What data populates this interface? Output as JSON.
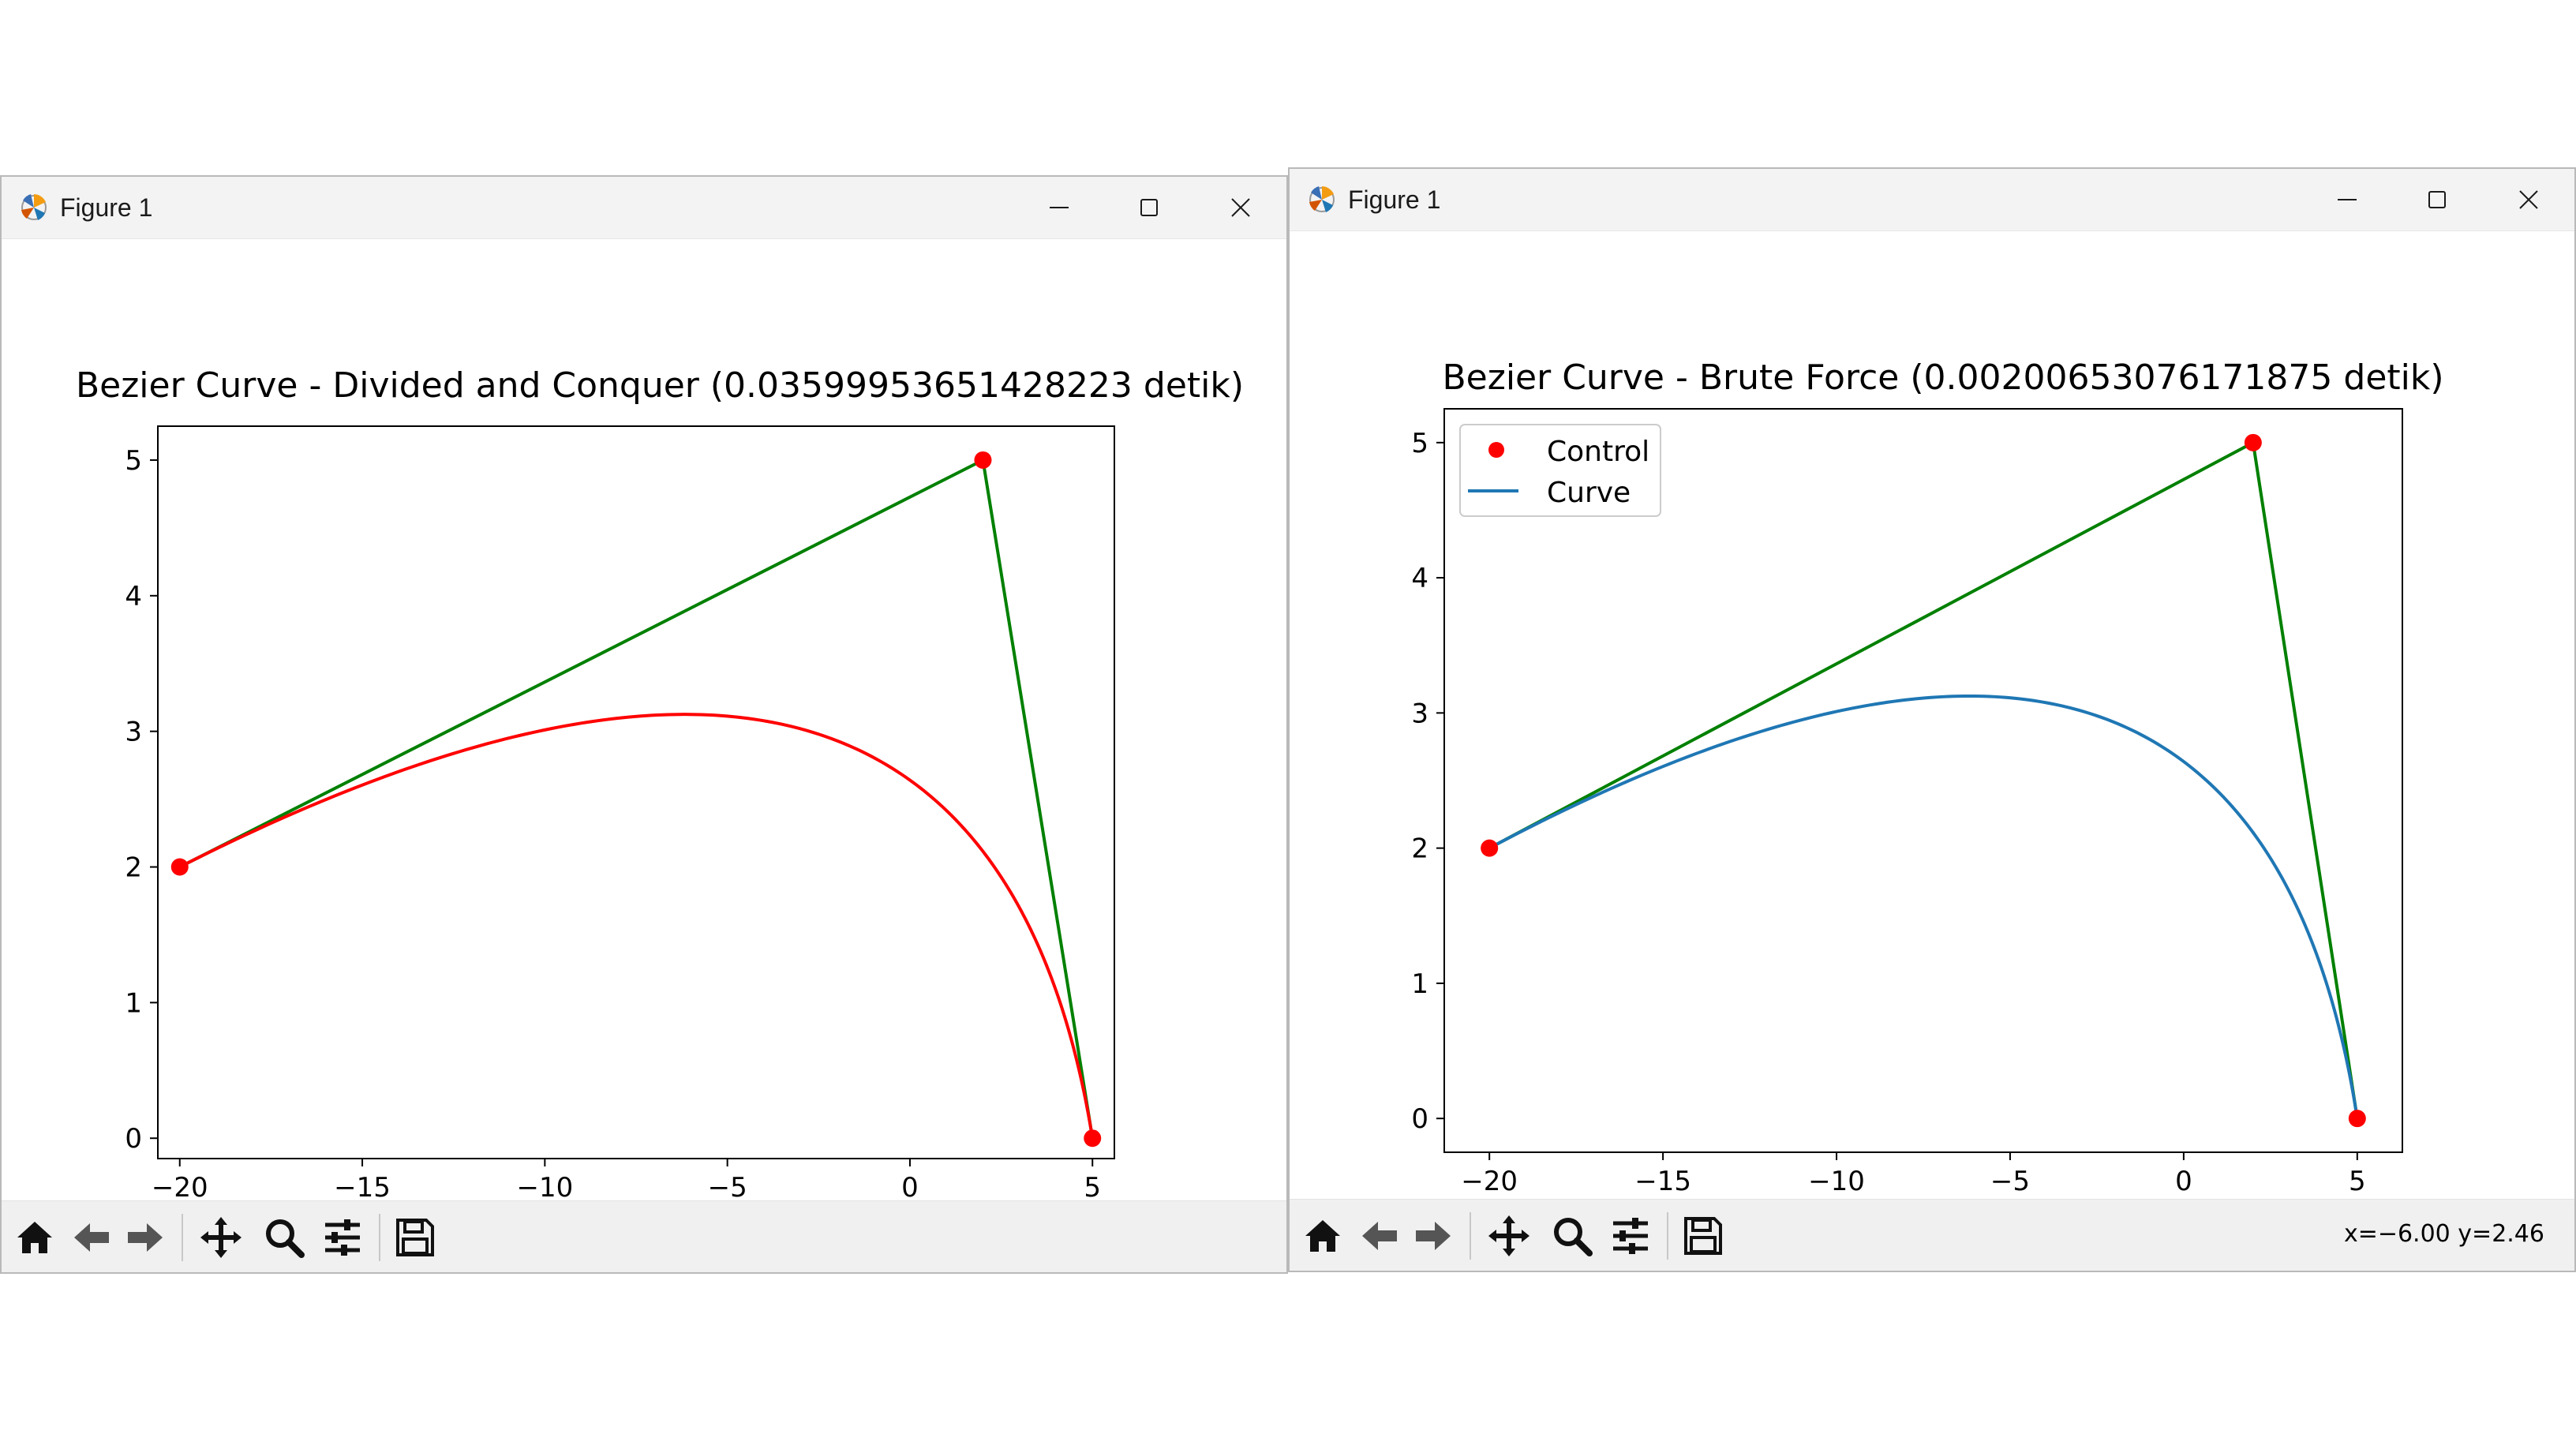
{
  "windows": [
    {
      "title": "Figure 1",
      "coords_text": "",
      "chart_data": {
        "type": "line",
        "title": "Bezier Curve - Divided and Conquer (0.03599953651428223 detik)",
        "xlabel": "",
        "ylabel": "",
        "xlim": [
          -20.6,
          5.6
        ],
        "ylim": [
          -0.15,
          5.25
        ],
        "xticks": [
          -20,
          -15,
          -10,
          -5,
          0,
          5
        ],
        "xtick_labels": [
          "−20",
          "−15",
          "−10",
          "−5",
          "0",
          "5"
        ],
        "yticks": [
          0,
          1,
          2,
          3,
          4,
          5
        ],
        "ytick_labels": [
          "0",
          "1",
          "2",
          "3",
          "4",
          "5"
        ],
        "control_points": [
          {
            "x": -20,
            "y": 2
          },
          {
            "x": 2,
            "y": 5
          },
          {
            "x": 5,
            "y": 0
          }
        ],
        "series": [
          {
            "kind": "control-polygon",
            "color": "#008000",
            "points": [
              [
                -20,
                2
              ],
              [
                2,
                5
              ],
              [
                5,
                0
              ]
            ]
          },
          {
            "kind": "bezier-curve",
            "color": "#ff0000",
            "control": [
              [
                -20,
                2
              ],
              [
                2,
                5
              ],
              [
                5,
                0
              ]
            ]
          },
          {
            "kind": "control-points",
            "color": "#ff0000",
            "points": [
              [
                -20,
                2
              ],
              [
                2,
                5
              ],
              [
                5,
                0
              ]
            ]
          }
        ],
        "grid": false,
        "legend": null
      }
    },
    {
      "title": "Figure 1",
      "coords_text": "x=−6.00 y=2.46",
      "chart_data": {
        "type": "line",
        "title": "Bezier Curve - Brute Force (0.00200653076171875 detik)",
        "xlabel": "",
        "ylabel": "",
        "xlim": [
          -21.3,
          6.3
        ],
        "ylim": [
          -0.25,
          5.25
        ],
        "xticks": [
          -20,
          -15,
          -10,
          -5,
          0,
          5
        ],
        "xtick_labels": [
          "−20",
          "−15",
          "−10",
          "−5",
          "0",
          "5"
        ],
        "yticks": [
          0,
          1,
          2,
          3,
          4,
          5
        ],
        "ytick_labels": [
          "0",
          "1",
          "2",
          "3",
          "4",
          "5"
        ],
        "control_points": [
          {
            "x": -20,
            "y": 2
          },
          {
            "x": 2,
            "y": 5
          },
          {
            "x": 5,
            "y": 0
          }
        ],
        "series": [
          {
            "kind": "control-polygon",
            "color": "#008000",
            "points": [
              [
                -20,
                2
              ],
              [
                2,
                5
              ],
              [
                5,
                0
              ]
            ]
          },
          {
            "kind": "bezier-curve",
            "name": "Curve",
            "color": "#1f77b4",
            "control": [
              [
                -20,
                2
              ],
              [
                2,
                5
              ],
              [
                5,
                0
              ]
            ]
          },
          {
            "kind": "control-points",
            "name": "Control",
            "color": "#ff0000",
            "points": [
              [
                -20,
                2
              ],
              [
                2,
                5
              ],
              [
                5,
                0
              ]
            ]
          }
        ],
        "grid": false,
        "legend": {
          "position": "upper-left",
          "entries": [
            {
              "label": "Control",
              "marker": "dot",
              "color": "#ff0000"
            },
            {
              "label": "Curve",
              "marker": "line",
              "color": "#1f77b4"
            }
          ]
        }
      }
    }
  ],
  "toolbar_icons": [
    "home-icon",
    "back-icon",
    "forward-icon",
    "pan-icon",
    "zoom-icon",
    "configure-icon",
    "save-icon"
  ]
}
